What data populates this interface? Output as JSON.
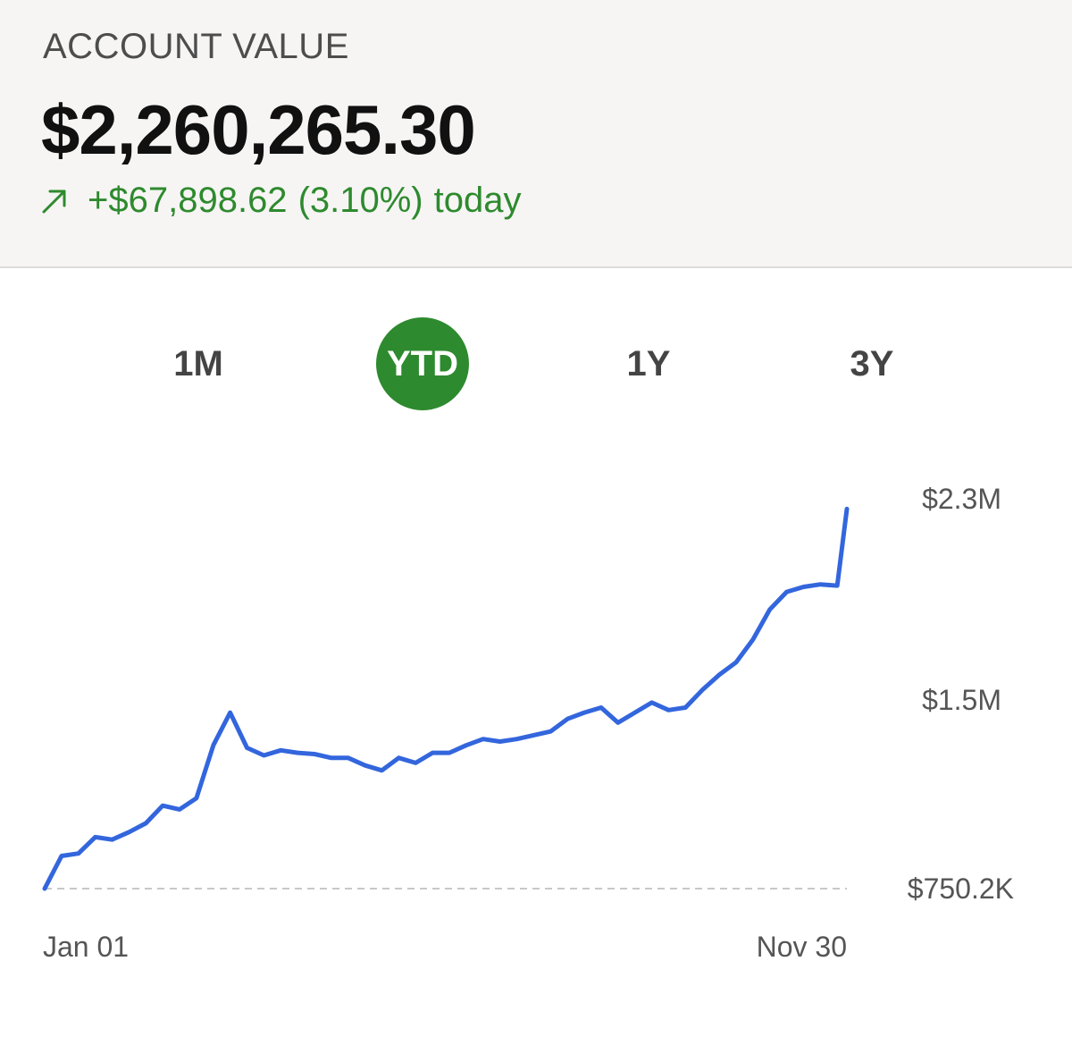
{
  "header": {
    "label": "ACCOUNT VALUE",
    "value": "$2,260,265.30",
    "change_amount": "+$67,898.62",
    "change_percent": "(3.10%)",
    "change_suffix": "today",
    "change_icon": "arrow-up-right-icon",
    "positive_color": "#2e8a2e"
  },
  "ranges": {
    "items": [
      {
        "label": "1M"
      },
      {
        "label": "YTD"
      },
      {
        "label": "1Y"
      },
      {
        "label": "3Y"
      }
    ],
    "active_label": "YTD",
    "active_color": "#2e8a2e"
  },
  "chart_data": {
    "type": "line",
    "line_color": "#3366dd",
    "y_ticks": [
      750200,
      1500000,
      2300000
    ],
    "y_tick_labels": [
      "$750.2K",
      "$1.5M",
      "$2.3M"
    ],
    "ylim": [
      750200,
      2300000
    ],
    "x_tick_labels": [
      "Jan 01",
      "Nov 30"
    ],
    "baseline": 750200,
    "x": [
      "2021-01-01",
      "2021-01-08",
      "2021-01-15",
      "2021-01-22",
      "2021-01-29",
      "2021-02-05",
      "2021-02-12",
      "2021-02-19",
      "2021-02-26",
      "2021-03-05",
      "2021-03-12",
      "2021-03-19",
      "2021-03-26",
      "2021-04-02",
      "2021-04-09",
      "2021-04-16",
      "2021-04-23",
      "2021-04-30",
      "2021-05-07",
      "2021-05-14",
      "2021-05-21",
      "2021-05-28",
      "2021-06-04",
      "2021-06-11",
      "2021-06-18",
      "2021-06-25",
      "2021-07-02",
      "2021-07-09",
      "2021-07-16",
      "2021-07-23",
      "2021-07-30",
      "2021-08-06",
      "2021-08-13",
      "2021-08-20",
      "2021-08-27",
      "2021-09-03",
      "2021-09-10",
      "2021-09-17",
      "2021-09-24",
      "2021-10-01",
      "2021-10-08",
      "2021-10-15",
      "2021-10-22",
      "2021-10-29",
      "2021-11-05",
      "2021-11-12",
      "2021-11-19",
      "2021-11-26",
      "2021-11-30"
    ],
    "values": [
      750200,
      880000,
      890000,
      955000,
      945000,
      975000,
      1010000,
      1080000,
      1065000,
      1110000,
      1320000,
      1450000,
      1310000,
      1280000,
      1300000,
      1290000,
      1285000,
      1270000,
      1270000,
      1240000,
      1220000,
      1270000,
      1250000,
      1290000,
      1290000,
      1320000,
      1345000,
      1335000,
      1345000,
      1360000,
      1375000,
      1425000,
      1450000,
      1470000,
      1410000,
      1450000,
      1490000,
      1460000,
      1470000,
      1540000,
      1600000,
      1650000,
      1740000,
      1860000,
      1930000,
      1950000,
      1960000,
      1955000,
      2260000
    ]
  }
}
